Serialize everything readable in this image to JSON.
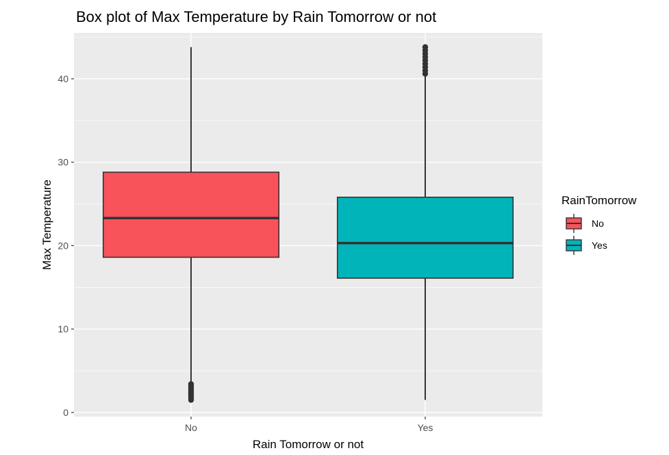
{
  "chart_data": {
    "type": "boxplot",
    "title": "Box plot of Max Temperature by Rain Tomorrow or not",
    "xlabel": "Rain Tomorrow or not",
    "ylabel": "Max Temperature",
    "categories": [
      "No",
      "Yes"
    ],
    "ylim": [
      -0.5,
      45.5
    ],
    "yticks": [
      0,
      10,
      20,
      30,
      40
    ],
    "grid": true,
    "legend": {
      "title": "RainTomorrow",
      "position": "right",
      "entries": [
        "No",
        "Yes"
      ]
    },
    "series": [
      {
        "category": "No",
        "color": "#F8525A",
        "whisker_low": 3.6,
        "q1": 18.6,
        "median": 23.3,
        "q3": 28.8,
        "whisker_high": 43.8,
        "outliers": [
          1.5,
          1.8,
          2.0,
          2.2,
          2.4,
          2.6,
          2.8,
          3.0,
          3.2,
          3.4
        ]
      },
      {
        "category": "Yes",
        "color": "#00B4B9",
        "whisker_low": 1.5,
        "q1": 16.1,
        "median": 20.3,
        "q3": 25.8,
        "whisker_high": 40.4,
        "outliers": [
          40.6,
          41.0,
          41.4,
          41.8,
          42.2,
          42.6,
          43.0,
          43.4,
          43.8
        ]
      }
    ],
    "colors": {
      "panel_bg": "#EBEBEB",
      "grid_major": "#FFFFFF",
      "box_outline": "#333333"
    }
  }
}
